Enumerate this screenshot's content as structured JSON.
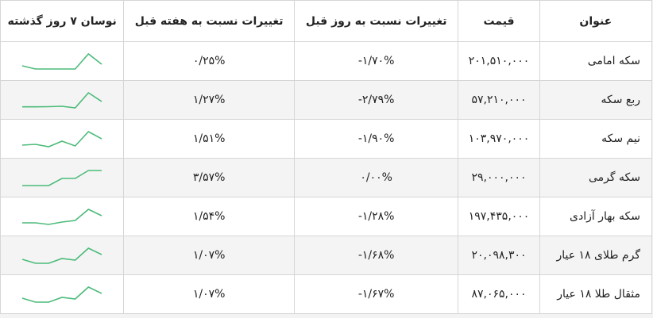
{
  "colors": {
    "sparkline": "#4cbb7a",
    "row_alt": "#f4f4f4",
    "border": "#d6d6d6"
  },
  "headers": {
    "title": "عنوان",
    "price": "قیمت",
    "day_change": "تغییرات نسبت به روز قبل",
    "week_change": "تغییرات نسبت به هفته قبل",
    "trend": "نوسان ۷ روز گذشته"
  },
  "rows": [
    {
      "title": "سکه امامی",
      "price": "۲۰۱,۵۱۰,۰۰۰",
      "day_change": "-۱/۷۰%",
      "week_change": "۰/۲۵%",
      "trend": [
        4,
        0,
        0,
        0,
        0,
        19,
        6
      ]
    },
    {
      "title": "ربع سکه",
      "price": "۵۷,۲۱۰,۰۰۰",
      "day_change": "-۲/۷۹%",
      "week_change": "۱/۲۷%",
      "trend": [
        1.3,
        1.3,
        1.5,
        2,
        0,
        19,
        8
      ]
    },
    {
      "title": "نیم سکه",
      "price": "۱۰۳,۹۷۰,۰۰۰",
      "day_change": "-۱/۹۰%",
      "week_change": "۱/۵۱%",
      "trend": [
        2,
        3,
        0,
        7,
        1,
        19,
        10
      ]
    },
    {
      "title": "سکه گرمی",
      "price": "۲۹,۰۰۰,۰۰۰",
      "day_change": "۰/۰۰%",
      "week_change": "۳/۵۷%",
      "trend": [
        0,
        0,
        0,
        9,
        9,
        19,
        19
      ]
    },
    {
      "title": "سکه بهار آزادی",
      "price": "۱۹۷,۴۳۵,۰۰۰",
      "day_change": "-۱/۲۸%",
      "week_change": "۱/۵۴%",
      "trend": [
        2,
        2,
        0,
        3,
        5,
        19,
        11
      ]
    },
    {
      "title": "گرم طلای ۱۸ عیار",
      "price": "۲۰,۰۹۸,۳۰۰",
      "day_change": "-۱/۶۸%",
      "week_change": "۱/۰۷%",
      "trend": [
        5,
        0,
        0,
        6,
        4,
        19,
        11
      ]
    },
    {
      "title": "مثقال طلا ۱۸ عیار",
      "price": "۸۷,۰۶۵,۰۰۰",
      "day_change": "-۱/۶۷%",
      "week_change": "۱/۰۷%",
      "trend": [
        5,
        0,
        0,
        6,
        4,
        19,
        11
      ]
    }
  ]
}
